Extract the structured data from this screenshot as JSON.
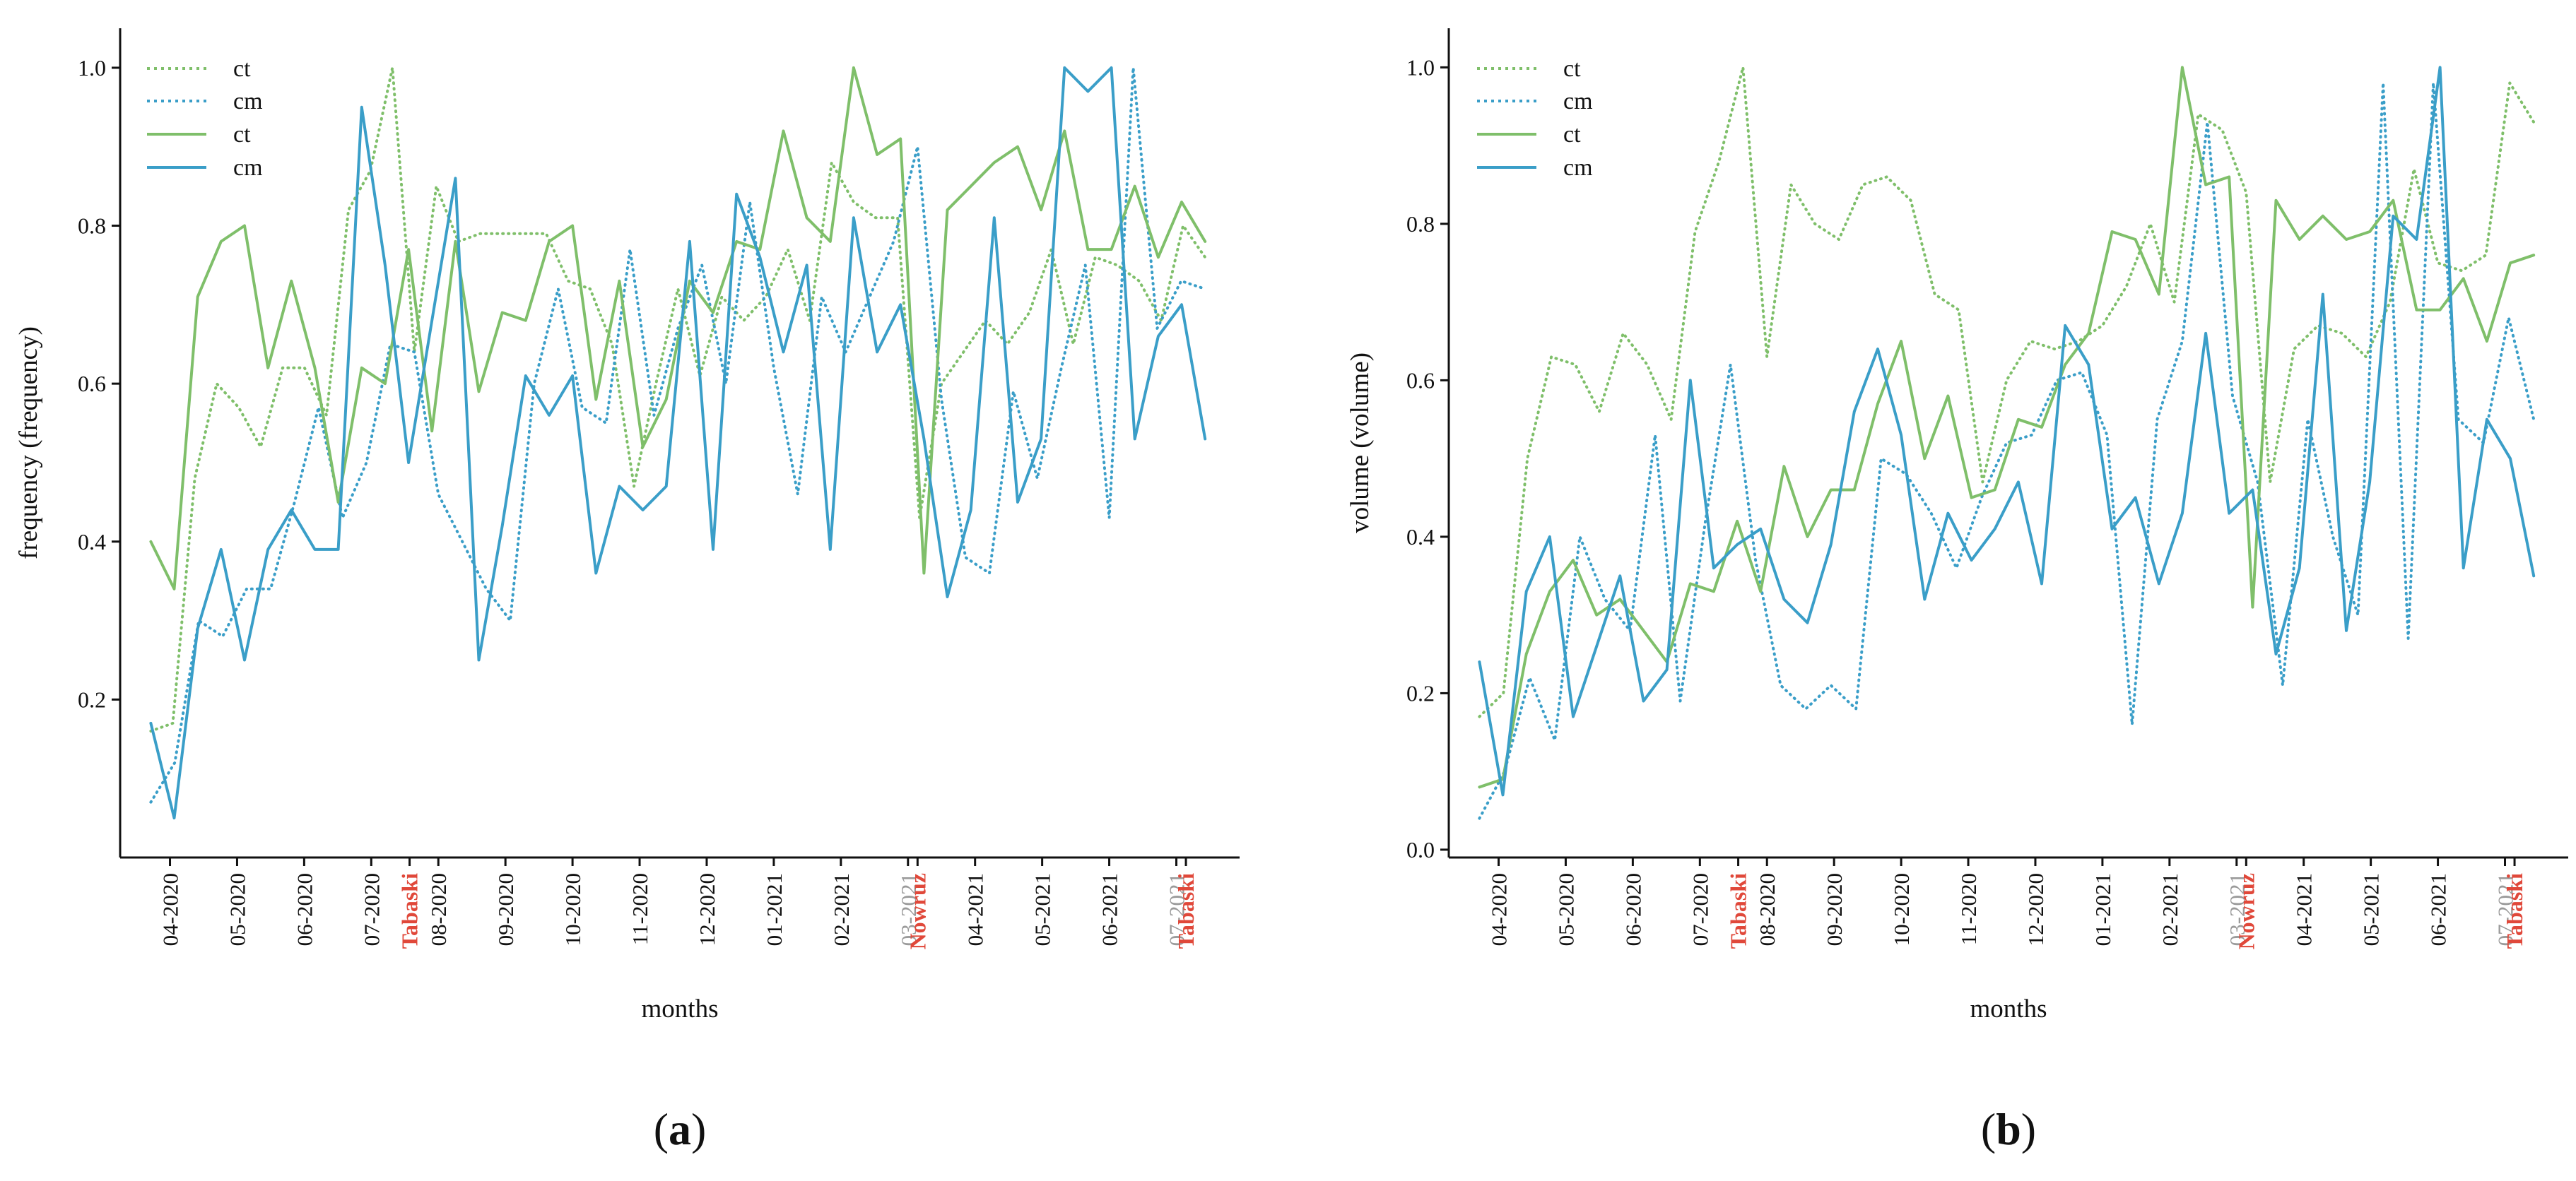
{
  "chart_data": [
    {
      "type": "line",
      "panel_label": "a",
      "xlabel": "months",
      "ylabel": "frequency (frequency)",
      "ylim": [
        0.0,
        1.05
      ],
      "yticks": [
        0.2,
        0.4,
        0.6,
        0.8,
        1.0
      ],
      "ytick_labels": [
        "0.2",
        "0.4",
        "0.6",
        "0.8",
        "1.0"
      ],
      "legend_position": "top-left",
      "x_index_range": [
        -1.6,
        56.8
      ],
      "month_ticks": [
        {
          "label": "04-2020",
          "x": 1,
          "color": "#111111"
        },
        {
          "label": "05-2020",
          "x": 4.5,
          "color": "#111111"
        },
        {
          "label": "06-2020",
          "x": 8,
          "color": "#111111"
        },
        {
          "label": "07-2020",
          "x": 11.5,
          "color": "#111111"
        },
        {
          "label": "08-2020",
          "x": 15,
          "color": "#111111"
        },
        {
          "label": "09-2020",
          "x": 18.5,
          "color": "#111111"
        },
        {
          "label": "10-2020",
          "x": 22,
          "color": "#111111"
        },
        {
          "label": "11-2020",
          "x": 25.5,
          "color": "#111111"
        },
        {
          "label": "12-2020",
          "x": 29,
          "color": "#111111"
        },
        {
          "label": "01-2021",
          "x": 32.5,
          "color": "#111111"
        },
        {
          "label": "02-2021",
          "x": 36,
          "color": "#111111"
        },
        {
          "label": "03-2021",
          "x": 39.5,
          "color": "#9a9a9a"
        },
        {
          "label": "04-2021",
          "x": 43,
          "color": "#111111"
        },
        {
          "label": "05-2021",
          "x": 46.5,
          "color": "#111111"
        },
        {
          "label": "06-2021",
          "x": 50,
          "color": "#111111"
        },
        {
          "label": "07-2021",
          "x": 53.5,
          "color": "#9a9a9a"
        }
      ],
      "event_ticks": [
        {
          "label": "Tabaski",
          "x": 13.5
        },
        {
          "label": "Nowruz",
          "x": 40
        },
        {
          "label": "Tabaski",
          "x": 54
        }
      ],
      "series": [
        {
          "name": "ct",
          "style": "dotted",
          "color": "#7fbf6a",
          "values": [
            0.16,
            0.17,
            0.48,
            0.6,
            0.57,
            0.52,
            0.62,
            0.62,
            0.56,
            0.82,
            0.87,
            1.0,
            0.64,
            0.85,
            0.78,
            0.79,
            0.79,
            0.79,
            0.79,
            0.73,
            0.72,
            0.65,
            0.47,
            0.6,
            0.72,
            0.61,
            0.71,
            0.68,
            0.71,
            0.77,
            0.68,
            0.88,
            0.83,
            0.81,
            0.81,
            0.43,
            0.6,
            0.64,
            0.68,
            0.65,
            0.69,
            0.77,
            0.65,
            0.76,
            0.75,
            0.73,
            0.68,
            0.8,
            0.76
          ]
        },
        {
          "name": "cm",
          "style": "dotted",
          "color": "#3a9ec8",
          "values": [
            0.07,
            0.12,
            0.3,
            0.28,
            0.34,
            0.34,
            0.45,
            0.57,
            0.43,
            0.5,
            0.65,
            0.64,
            0.46,
            0.4,
            0.34,
            0.3,
            0.6,
            0.72,
            0.57,
            0.55,
            0.77,
            0.56,
            0.67,
            0.75,
            0.6,
            0.83,
            0.62,
            0.46,
            0.71,
            0.64,
            0.71,
            0.78,
            0.9,
            0.58,
            0.38,
            0.36,
            0.59,
            0.48,
            0.62,
            0.75,
            0.43,
            1.0,
            0.67,
            0.73,
            0.72
          ]
        },
        {
          "name": "ct",
          "style": "solid",
          "color": "#7fbf6a",
          "values": [
            0.4,
            0.34,
            0.71,
            0.78,
            0.8,
            0.62,
            0.73,
            0.62,
            0.45,
            0.62,
            0.6,
            0.77,
            0.54,
            0.78,
            0.59,
            0.69,
            0.68,
            0.78,
            0.8,
            0.58,
            0.73,
            0.52,
            0.58,
            0.73,
            0.69,
            0.78,
            0.77,
            0.92,
            0.81,
            0.78,
            1.0,
            0.89,
            0.91,
            0.36,
            0.82,
            0.85,
            0.88,
            0.9,
            0.82,
            0.92,
            0.77,
            0.77,
            0.85,
            0.76,
            0.83,
            0.78
          ]
        },
        {
          "name": "cm",
          "style": "solid",
          "color": "#3a9ec8",
          "values": [
            0.17,
            0.05,
            0.29,
            0.39,
            0.25,
            0.39,
            0.44,
            0.39,
            0.39,
            0.95,
            0.75,
            0.5,
            0.68,
            0.86,
            0.25,
            0.42,
            0.61,
            0.56,
            0.61,
            0.36,
            0.47,
            0.44,
            0.47,
            0.78,
            0.39,
            0.84,
            0.76,
            0.64,
            0.75,
            0.39,
            0.81,
            0.64,
            0.7,
            0.53,
            0.33,
            0.44,
            0.81,
            0.45,
            0.53,
            1.0,
            0.97,
            1.0,
            0.53,
            0.66,
            0.7,
            0.53
          ]
        }
      ]
    },
    {
      "type": "line",
      "panel_label": "b",
      "xlabel": "months",
      "ylabel": "volume (volume)",
      "ylim": [
        -0.01,
        1.05
      ],
      "yticks": [
        0.0,
        0.2,
        0.4,
        0.6,
        0.8,
        1.0
      ],
      "ytick_labels": [
        "0.0",
        "0.2",
        "0.4",
        "0.6",
        "0.8",
        "1.0"
      ],
      "legend_position": "top-left",
      "x_index_range": [
        -1.6,
        56.8
      ],
      "month_ticks": [
        {
          "label": "04-2020",
          "x": 1,
          "color": "#111111"
        },
        {
          "label": "05-2020",
          "x": 4.5,
          "color": "#111111"
        },
        {
          "label": "06-2020",
          "x": 8,
          "color": "#111111"
        },
        {
          "label": "07-2020",
          "x": 11.5,
          "color": "#111111"
        },
        {
          "label": "08-2020",
          "x": 15,
          "color": "#111111"
        },
        {
          "label": "09-2020",
          "x": 18.5,
          "color": "#111111"
        },
        {
          "label": "10-2020",
          "x": 22,
          "color": "#111111"
        },
        {
          "label": "11-2020",
          "x": 25.5,
          "color": "#111111"
        },
        {
          "label": "12-2020",
          "x": 29,
          "color": "#111111"
        },
        {
          "label": "01-2021",
          "x": 32.5,
          "color": "#111111"
        },
        {
          "label": "02-2021",
          "x": 36,
          "color": "#111111"
        },
        {
          "label": "03-2021",
          "x": 39.5,
          "color": "#9a9a9a"
        },
        {
          "label": "04-2021",
          "x": 43,
          "color": "#111111"
        },
        {
          "label": "05-2021",
          "x": 46.5,
          "color": "#111111"
        },
        {
          "label": "06-2021",
          "x": 50,
          "color": "#111111"
        },
        {
          "label": "07-2021",
          "x": 53.5,
          "color": "#9a9a9a"
        }
      ],
      "event_ticks": [
        {
          "label": "Tabaski",
          "x": 13.5
        },
        {
          "label": "Nowruz",
          "x": 40
        },
        {
          "label": "Tabaski",
          "x": 54
        }
      ],
      "series": [
        {
          "name": "ct",
          "style": "dotted",
          "color": "#7fbf6a",
          "values": [
            0.17,
            0.2,
            0.5,
            0.63,
            0.62,
            0.56,
            0.66,
            0.62,
            0.55,
            0.79,
            0.88,
            1.0,
            0.63,
            0.85,
            0.8,
            0.78,
            0.85,
            0.86,
            0.83,
            0.71,
            0.69,
            0.47,
            0.6,
            0.65,
            0.64,
            0.65,
            0.67,
            0.72,
            0.8,
            0.7,
            0.94,
            0.92,
            0.84,
            0.47,
            0.64,
            0.67,
            0.66,
            0.63,
            0.7,
            0.87,
            0.75,
            0.74,
            0.76,
            0.98,
            0.93
          ]
        },
        {
          "name": "cm",
          "style": "dotted",
          "color": "#3a9ec8",
          "values": [
            0.04,
            0.1,
            0.22,
            0.14,
            0.4,
            0.32,
            0.28,
            0.53,
            0.19,
            0.42,
            0.62,
            0.37,
            0.21,
            0.18,
            0.21,
            0.18,
            0.5,
            0.48,
            0.43,
            0.36,
            0.45,
            0.52,
            0.53,
            0.6,
            0.61,
            0.53,
            0.16,
            0.55,
            0.65,
            0.93,
            0.58,
            0.47,
            0.21,
            0.55,
            0.4,
            0.3,
            0.98,
            0.27,
            0.98,
            0.55,
            0.52,
            0.68,
            0.55
          ]
        },
        {
          "name": "ct",
          "style": "solid",
          "color": "#7fbf6a",
          "values": [
            0.08,
            0.09,
            0.25,
            0.33,
            0.37,
            0.3,
            0.32,
            0.28,
            0.24,
            0.34,
            0.33,
            0.42,
            0.33,
            0.49,
            0.4,
            0.46,
            0.46,
            0.57,
            0.65,
            0.5,
            0.58,
            0.45,
            0.46,
            0.55,
            0.54,
            0.62,
            0.66,
            0.79,
            0.78,
            0.71,
            1.0,
            0.85,
            0.86,
            0.31,
            0.83,
            0.78,
            0.81,
            0.78,
            0.79,
            0.83,
            0.69,
            0.69,
            0.73,
            0.65,
            0.75,
            0.76
          ]
        },
        {
          "name": "cm",
          "style": "solid",
          "color": "#3a9ec8",
          "values": [
            0.24,
            0.07,
            0.33,
            0.4,
            0.17,
            0.26,
            0.35,
            0.19,
            0.23,
            0.6,
            0.36,
            0.39,
            0.41,
            0.32,
            0.29,
            0.39,
            0.56,
            0.64,
            0.53,
            0.32,
            0.43,
            0.37,
            0.41,
            0.47,
            0.34,
            0.67,
            0.62,
            0.41,
            0.45,
            0.34,
            0.43,
            0.66,
            0.43,
            0.46,
            0.25,
            0.36,
            0.71,
            0.28,
            0.47,
            0.81,
            0.78,
            1.0,
            0.36,
            0.55,
            0.5,
            0.35
          ]
        }
      ]
    }
  ]
}
